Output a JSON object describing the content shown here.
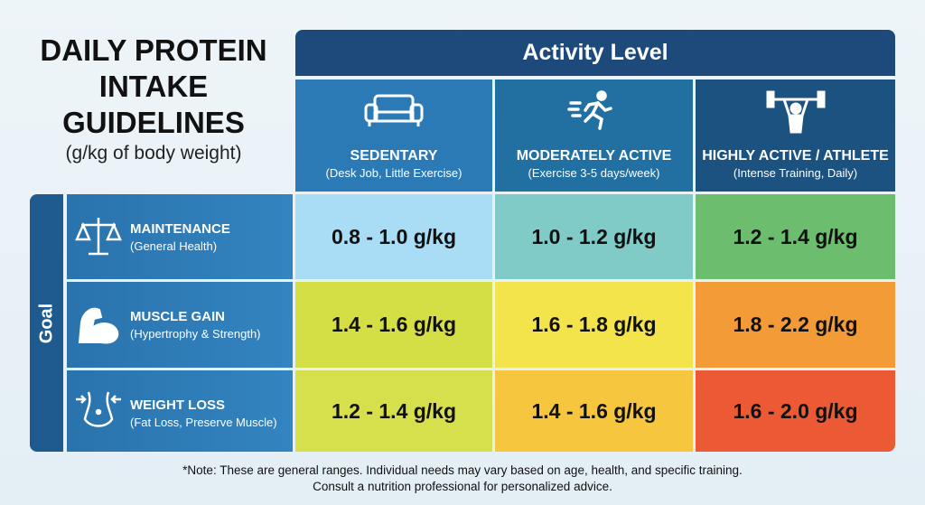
{
  "title": [
    "DAILY PROTEIN",
    "INTAKE",
    "GUIDELINES"
  ],
  "subtitle": "(g/kg of body weight)",
  "column_group": "Activity Level",
  "row_group": "Goal",
  "columns": [
    {
      "name": "SEDENTARY",
      "desc": "(Desk Job, Little Exercise)"
    },
    {
      "name": "MODERATELY ACTIVE",
      "desc": "(Exercise 3-5 days/week)"
    },
    {
      "name": "HIGHLY ACTIVE / ATHLETE",
      "desc": "(Intense Training, Daily)"
    }
  ],
  "rows": [
    {
      "name": "MAINTENANCE",
      "desc": "(General Health)",
      "cells": [
        "0.8 - 1.0 g/kg",
        "1.0 - 1.2 g/kg",
        "1.2 - 1.4 g/kg"
      ]
    },
    {
      "name": "MUSCLE GAIN",
      "desc": "(Hypertrophy & Strength)",
      "cells": [
        "1.4 - 1.6 g/kg",
        "1.6 - 1.8 g/kg",
        "1.8 - 2.2 g/kg"
      ]
    },
    {
      "name": "WEIGHT LOSS",
      "desc": "(Fat Loss, Preserve Muscle)",
      "cells": [
        "1.2 - 1.4 g/kg",
        "1.4 - 1.6 g/kg",
        "1.6 - 2.0 g/kg"
      ]
    }
  ],
  "note": [
    "*Note: These are general ranges. Individual needs may vary based on age, health, and specific training.",
    "Consult a nutrition professional for personalized advice."
  ]
}
